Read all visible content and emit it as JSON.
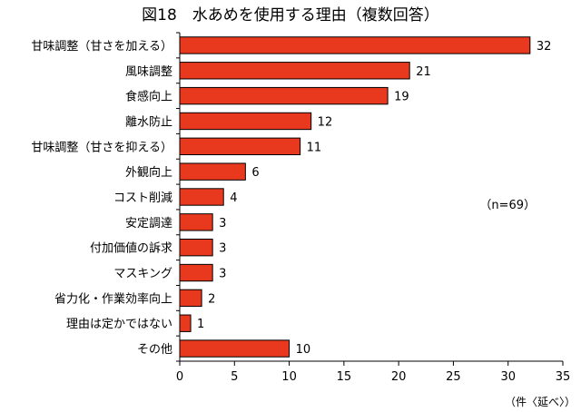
{
  "chart_data": {
    "type": "bar",
    "orientation": "horizontal",
    "title": "図18　水あめを使用する理由（複数回答）",
    "categories": [
      "甘味調整（甘さを加える）",
      "風味調整",
      "食感向上",
      "離水防止",
      "甘味調整（甘さを抑える）",
      "外観向上",
      "コスト削減",
      "安定調達",
      "付加価値の訴求",
      "マスキング",
      "省力化・作業効率向上",
      "理由は定かではない",
      "その他"
    ],
    "values": [
      32,
      21,
      19,
      12,
      11,
      6,
      4,
      3,
      3,
      3,
      2,
      1,
      10
    ],
    "xlim": [
      0,
      35
    ],
    "xticks": [
      0,
      5,
      10,
      15,
      20,
      25,
      30,
      35
    ],
    "xlabel": "（件〈延べ〉）",
    "annotation": "（n=69）",
    "grid": false,
    "bar_color": "#e8391e",
    "bar_edge_color": "#000000"
  }
}
